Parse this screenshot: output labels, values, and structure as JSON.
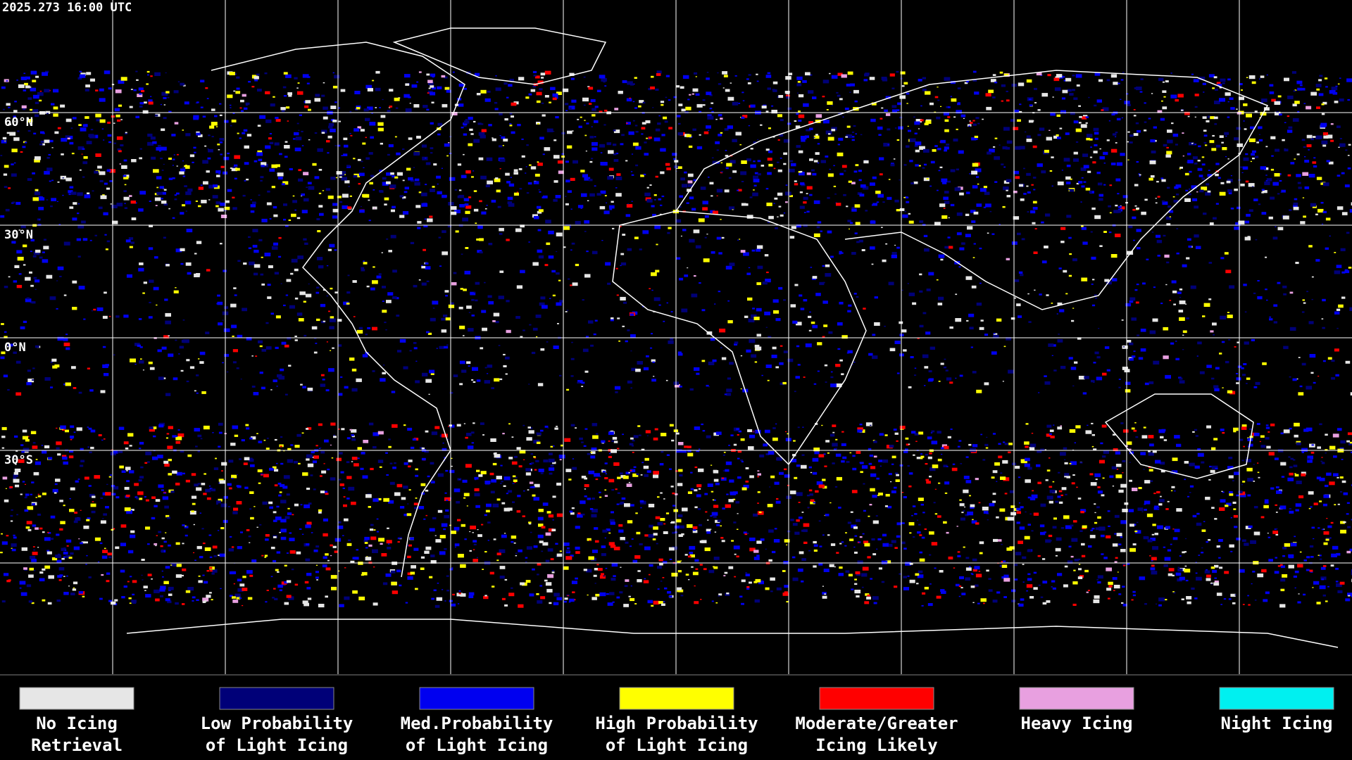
{
  "timestamp": "2025.273 16:00 UTC",
  "latitude_labels": [
    "60°N",
    "30°N",
    "0°N",
    "30°S"
  ],
  "legend": [
    {
      "label_lines": [
        "No Icing",
        "Retrieval"
      ],
      "color": "#e6e6e6"
    },
    {
      "label_lines": [
        "Low Probability",
        "of Light Icing"
      ],
      "color": "#000078"
    },
    {
      "label_lines": [
        "Med.Probability",
        "of Light Icing"
      ],
      "color": "#0000f0"
    },
    {
      "label_lines": [
        "High Probability",
        "of Light Icing"
      ],
      "color": "#ffff00"
    },
    {
      "label_lines": [
        "Moderate/Greater",
        "Icing Likely"
      ],
      "color": "#ff0000"
    },
    {
      "label_lines": [
        "Heavy Icing",
        ""
      ],
      "color": "#e8a0e0"
    },
    {
      "label_lines": [
        "Night Icing",
        ""
      ],
      "color": "#00f0f0"
    }
  ]
}
